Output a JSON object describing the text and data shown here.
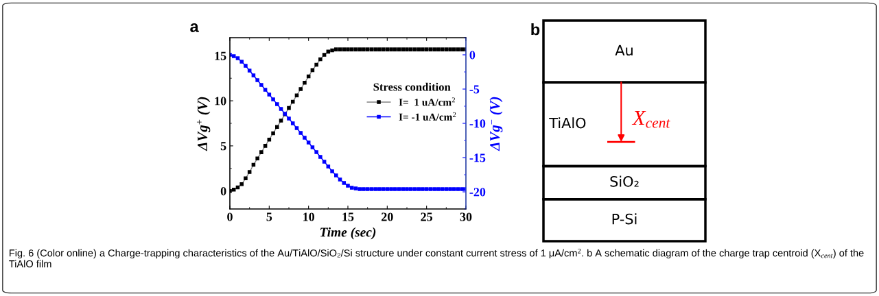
{
  "chart_data": [
    {
      "type": "line",
      "title": "a",
      "xlabel": "Time (sec)",
      "ylabel": "ΔVg$^{+}$ (V)",
      "y2label": "ΔVg$^{−}$ (V)",
      "legend_title": "Stress condition",
      "legend": "right",
      "marker": "square",
      "line_style": "solid",
      "x": [
        0,
        0.5,
        1,
        1.5,
        2,
        2.5,
        3,
        3.5,
        4,
        4.5,
        5,
        5.5,
        6,
        6.5,
        7,
        7.5,
        8,
        8.5,
        9,
        9.5,
        10,
        10.5,
        11,
        11.5,
        12,
        12.5,
        13,
        13.5,
        14,
        14.5,
        15,
        15.5,
        16,
        16.5,
        17,
        17.5,
        18,
        18.5,
        19,
        19.5,
        20,
        20.5,
        21,
        21.5,
        22,
        22.5,
        23,
        23.5,
        24,
        24.5,
        25,
        25.5,
        26,
        26.5,
        27,
        27.5,
        28,
        28.5,
        29,
        29.5,
        30
      ],
      "series": [
        {
          "name": "I=  1 uA/cm$^{2}$",
          "color": "#000000",
          "values": [
            0,
            0.15,
            0.4,
            0.75,
            1.4,
            2.1,
            2.9,
            3.6,
            4.3,
            5.0,
            5.7,
            6.4,
            7.1,
            7.8,
            8.5,
            9.2,
            9.9,
            10.6,
            11.3,
            12.0,
            12.7,
            13.4,
            14.0,
            14.6,
            15.1,
            15.45,
            15.6,
            15.7,
            15.7,
            15.7,
            15.7,
            15.7,
            15.7,
            15.7,
            15.7,
            15.7,
            15.7,
            15.7,
            15.7,
            15.7,
            15.7,
            15.7,
            15.7,
            15.7,
            15.7,
            15.7,
            15.7,
            15.7,
            15.7,
            15.7,
            15.7,
            15.7,
            15.7,
            15.7,
            15.7,
            15.7,
            15.7,
            15.7,
            15.7,
            15.7,
            15.7
          ]
        },
        {
          "name": "I= -1 uA/cm$^{2}$",
          "color": "#0000ff",
          "axis": "y2",
          "values": [
            0,
            -0.2,
            -0.5,
            -1.0,
            -1.6,
            -2.3,
            -3.0,
            -3.7,
            -4.4,
            -5.1,
            -5.8,
            -6.5,
            -7.2,
            -7.9,
            -8.6,
            -9.3,
            -10.0,
            -10.7,
            -11.4,
            -12.1,
            -12.8,
            -13.5,
            -14.2,
            -14.9,
            -15.6,
            -16.3,
            -17.0,
            -17.6,
            -18.2,
            -18.7,
            -19.1,
            -19.4,
            -19.5,
            -19.6,
            -19.6,
            -19.6,
            -19.6,
            -19.6,
            -19.6,
            -19.6,
            -19.6,
            -19.6,
            -19.6,
            -19.6,
            -19.6,
            -19.6,
            -19.6,
            -19.6,
            -19.6,
            -19.6,
            -19.6,
            -19.6,
            -19.6,
            -19.6,
            -19.6,
            -19.6,
            -19.6,
            -19.6,
            -19.6,
            -19.6,
            -19.6
          ]
        }
      ],
      "xlim": [
        0,
        30
      ],
      "xticks": [
        0,
        5,
        10,
        15,
        20,
        25,
        30
      ],
      "ylim": [
        -2,
        17
      ],
      "yticks": [
        0,
        5,
        10,
        15
      ],
      "y2lim": [
        -22.5,
        2.5
      ],
      "y2ticks": [
        0,
        -5,
        -10,
        -15,
        -20
      ],
      "annotations": [
        "Fig. 6 (Color online) a Charge-trapping characteristics of the Au/TiAlO/SiO₂/Si structure under constant current stress of 1 μA/cm$^{2}$. b A schematic diagram of the charge trap centroid (X$_{cent}$) of the TiAlO film"
      ]
    },
    {
      "type": "other",
      "title": "b",
      "annotations": [
        "Au",
        "TiAlO",
        "X$_{cent}$",
        "SiO₂",
        "P-Si"
      ]
    }
  ]
}
